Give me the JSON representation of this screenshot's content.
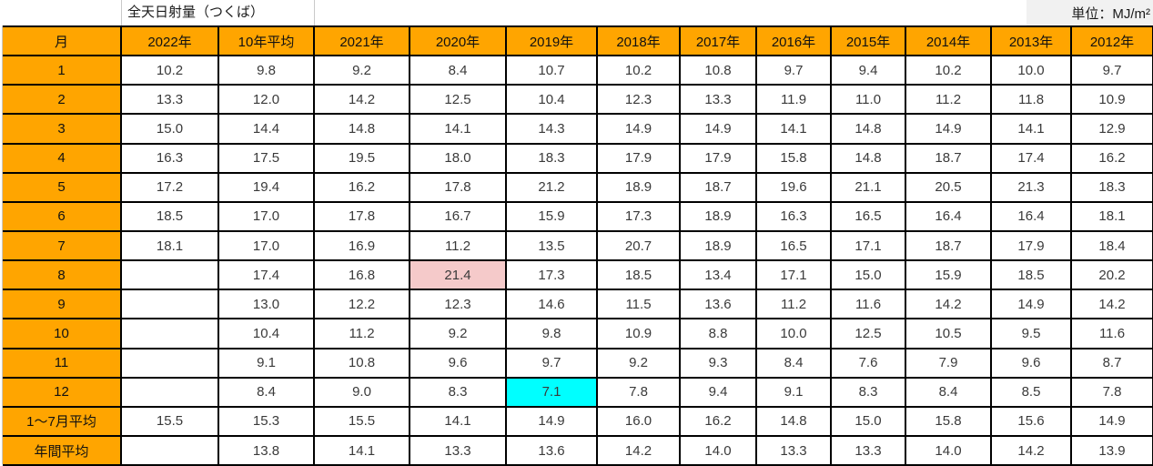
{
  "title": "全天日射量（つくば）",
  "unit_label": "単位：MJ/m²",
  "colors": {
    "header_bg": "#FFA500",
    "value_red": "#FF0000",
    "value_blue": "#0000FF",
    "highlight_pink": "#F5CACA",
    "highlight_cyan": "#00FFFF",
    "gridline": "#C9C9C9",
    "border": "#000000"
  },
  "table": {
    "row_header_label": "月",
    "columns": [
      "2022年",
      "10年平均",
      "2021年",
      "2020年",
      "2019年",
      "2018年",
      "2017年",
      "2016年",
      "2015年",
      "2014年",
      "2013年",
      "2012年"
    ],
    "rows": [
      {
        "label": "1",
        "cells": [
          "10.2",
          "9.8",
          "9.2",
          {
            "v": "8.4",
            "s": "blue"
          },
          "10.7",
          "10.2",
          {
            "v": "10.8",
            "s": "red"
          },
          "9.7",
          "9.4",
          "10.2",
          "10.0",
          "9.7"
        ]
      },
      {
        "label": "2",
        "cells": [
          "13.3",
          "12.0",
          {
            "v": "14.2",
            "s": "red"
          },
          "12.5",
          {
            "v": "10.4",
            "s": "blue"
          },
          "12.3",
          "13.3",
          "11.9",
          "11.0",
          "11.2",
          "11.8",
          "10.9"
        ]
      },
      {
        "label": "3",
        "cells": [
          {
            "v": "15.0",
            "s": "red"
          },
          "14.4",
          "14.8",
          "14.1",
          "14.3",
          {
            "v": "14.9",
            "s": "red"
          },
          {
            "v": "14.9",
            "s": "red"
          },
          "14.1",
          "14.8",
          {
            "v": "14.9",
            "s": "red"
          },
          "14.1",
          {
            "v": "12.9",
            "s": "blue"
          }
        ]
      },
      {
        "label": "4",
        "cells": [
          "16.3",
          "17.5",
          {
            "v": "19.5",
            "s": "red"
          },
          "18.0",
          "18.3",
          "17.9",
          "17.9",
          "15.8",
          {
            "v": "14.8",
            "s": "blue"
          },
          "18.7",
          "17.4",
          "16.2"
        ]
      },
      {
        "label": "5",
        "cells": [
          "17.2",
          "19.4",
          {
            "v": "16.2",
            "s": "blue"
          },
          "17.8",
          "21.2",
          "18.9",
          "18.7",
          "19.6",
          "21.1",
          "20.5",
          {
            "v": "21.3",
            "s": "red"
          },
          "18.3"
        ]
      },
      {
        "label": "6",
        "cells": [
          "18.5",
          "17.0",
          "17.8",
          "16.7",
          {
            "v": "15.9",
            "s": "blue"
          },
          "17.3",
          {
            "v": "18.9",
            "s": "red"
          },
          "16.3",
          "16.5",
          "16.4",
          "16.4",
          "18.1"
        ]
      },
      {
        "label": "7",
        "cells": [
          "18.1",
          "17.0",
          "16.9",
          {
            "v": "11.2",
            "s": "blue"
          },
          "13.5",
          {
            "v": "20.7",
            "s": "red"
          },
          "18.9",
          "16.5",
          "17.1",
          "18.7",
          "17.9",
          "18.4"
        ]
      },
      {
        "label": "8",
        "cells": [
          "",
          "17.4",
          "16.8",
          {
            "v": "21.4",
            "s": "red",
            "bg": "pink"
          },
          "17.3",
          "18.5",
          {
            "v": "13.4",
            "s": "blue"
          },
          "17.1",
          "15.0",
          "15.9",
          "18.5",
          {
            "v": "20.2",
            "s": "red"
          }
        ]
      },
      {
        "label": "9",
        "cells": [
          "",
          "13.0",
          "12.2",
          "12.3",
          "14.6",
          "11.5",
          "13.6",
          {
            "v": "11.2",
            "s": "blue"
          },
          "11.6",
          "14.2",
          {
            "v": "14.9",
            "s": "red"
          },
          "14.2"
        ]
      },
      {
        "label": "10",
        "cells": [
          "",
          "10.4",
          "11.2",
          "9.2",
          "9.8",
          "10.9",
          {
            "v": "8.8",
            "s": "blue"
          },
          "10.0",
          {
            "v": "12.5",
            "s": "red"
          },
          "10.5",
          "9.5",
          "11.6"
        ]
      },
      {
        "label": "11",
        "cells": [
          "",
          "9.1",
          {
            "v": "10.8",
            "s": "red"
          },
          "9.6",
          "9.7",
          "9.2",
          "9.3",
          "8.4",
          {
            "v": "7.6",
            "s": "blue"
          },
          "7.9",
          "9.6",
          "8.7"
        ]
      },
      {
        "label": "12",
        "cells": [
          "",
          "8.4",
          "9.0",
          "8.3",
          {
            "v": "7.1",
            "s": "blue",
            "bg": "cyan"
          },
          "7.8",
          {
            "v": "9.4",
            "s": "red"
          },
          "9.1",
          "8.3",
          "8.4",
          "8.5",
          "7.8"
        ]
      },
      {
        "label": "1～7月平均",
        "cells": [
          "15.5",
          "15.3",
          "15.5",
          {
            "v": "14.1",
            "s": "blue"
          },
          "14.9",
          "16.0",
          {
            "v": "16.2",
            "s": "red"
          },
          "14.8",
          "15.0",
          "15.8",
          "15.6",
          "14.9"
        ]
      },
      {
        "label": "年間平均",
        "cells": [
          "",
          "13.8",
          "14.1",
          {
            "v": "13.3",
            "s": "blue"
          },
          "13.6",
          {
            "v": "14.2",
            "s": "red"
          },
          "14.0",
          {
            "v": "13.3",
            "s": "blue"
          },
          {
            "v": "13.3",
            "s": "blue"
          },
          "14.0",
          {
            "v": "14.2",
            "s": "red"
          },
          "13.9"
        ]
      }
    ]
  }
}
